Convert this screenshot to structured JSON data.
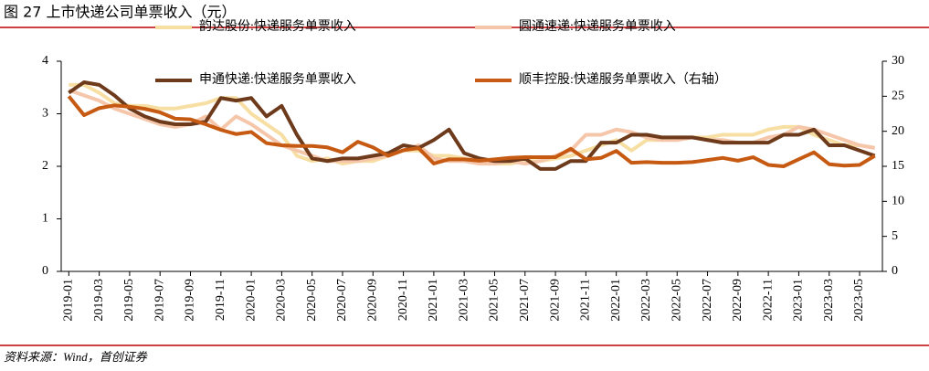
{
  "chart_data": {
    "type": "line",
    "title": "图 27 上市快递公司单票收入（元）",
    "source": "资料来源：Wind，首创证券",
    "categories": [
      "2019-01",
      null,
      "2019-03",
      null,
      "2019-05",
      null,
      "2019-07",
      null,
      "2019-09",
      null,
      "2019-11",
      null,
      "2020-01",
      null,
      "2020-03",
      null,
      "2020-05",
      null,
      "2020-07",
      null,
      "2020-09",
      null,
      "2020-11",
      null,
      "2021-01",
      null,
      "2021-03",
      null,
      "2021-05",
      null,
      "2021-07",
      null,
      "2021-09",
      null,
      "2021-11",
      null,
      "2022-01",
      null,
      "2022-03",
      null,
      "2022-05",
      null,
      "2022-07",
      null,
      "2022-09",
      null,
      "2022-11",
      null,
      "2023-01",
      null,
      "2023-03",
      null,
      "2023-05",
      null
    ],
    "ylim": [
      0,
      4
    ],
    "yticks": [
      0,
      1,
      2,
      3,
      4
    ],
    "y2lim": [
      0,
      30
    ],
    "y2ticks": [
      0,
      5,
      10,
      15,
      20,
      25,
      30
    ],
    "series": [
      {
        "name": "韵达股份:快递服务单票收入",
        "color": "#F7DFA3",
        "values": [
          3.55,
          3.55,
          3.4,
          3.2,
          3.15,
          3.15,
          3.1,
          3.1,
          3.15,
          3.2,
          3.3,
          3.3,
          3.0,
          2.8,
          2.6,
          2.2,
          2.1,
          2.15,
          2.05,
          2.1,
          2.1,
          2.2,
          2.3,
          2.3,
          2.2,
          2.2,
          2.15,
          2.1,
          2.05,
          2.05,
          2.1,
          2.1,
          2.15,
          2.2,
          2.3,
          2.4,
          2.5,
          2.3,
          2.5,
          2.5,
          2.55,
          2.55,
          2.55,
          2.6,
          2.6,
          2.6,
          2.7,
          2.75,
          2.75,
          2.6,
          2.5,
          2.4,
          2.4,
          2.35
        ]
      },
      {
        "name": "圆通速递:快递服务单票收入",
        "color": "#F5C6AA",
        "values": [
          3.45,
          3.35,
          3.25,
          3.1,
          3.0,
          2.9,
          2.8,
          2.75,
          2.8,
          2.95,
          2.7,
          2.95,
          2.8,
          2.6,
          2.4,
          2.3,
          2.2,
          2.1,
          2.1,
          2.1,
          2.15,
          2.2,
          2.3,
          2.4,
          2.15,
          2.1,
          2.1,
          2.05,
          2.05,
          2.1,
          2.05,
          2.1,
          2.2,
          2.3,
          2.6,
          2.6,
          2.7,
          2.65,
          2.55,
          2.5,
          2.5,
          2.55,
          2.5,
          2.5,
          2.45,
          2.45,
          2.55,
          2.6,
          2.75,
          2.7,
          2.6,
          2.5,
          2.4,
          2.35
        ]
      },
      {
        "name": "申通快递:快递服务单票收入",
        "color": "#6E3A1C",
        "values": [
          3.4,
          3.6,
          3.55,
          3.35,
          3.1,
          2.95,
          2.85,
          2.8,
          2.8,
          2.85,
          3.3,
          3.25,
          3.3,
          2.95,
          3.15,
          2.6,
          2.15,
          2.1,
          2.15,
          2.15,
          2.2,
          2.25,
          2.4,
          2.35,
          2.5,
          2.7,
          2.25,
          2.15,
          2.1,
          2.1,
          2.15,
          1.95,
          1.95,
          2.1,
          2.1,
          2.45,
          2.45,
          2.6,
          2.6,
          2.55,
          2.55,
          2.55,
          2.5,
          2.45,
          2.45,
          2.45,
          2.45,
          2.6,
          2.6,
          2.7,
          2.4,
          2.4,
          2.3,
          2.2
        ]
      },
      {
        "name": "顺丰控股:快递服务单票收入（右轴）",
        "color": "#C65A12",
        "axis": "y2",
        "values": [
          25,
          22.3,
          23.3,
          23.7,
          23.5,
          23.2,
          22.7,
          21.8,
          21.7,
          21.0,
          20.2,
          19.6,
          19.9,
          18.3,
          18.0,
          17.9,
          17.9,
          17.7,
          17.0,
          18.5,
          17.7,
          16.5,
          17.3,
          17.6,
          15.4,
          16.0,
          16.0,
          15.8,
          16.0,
          16.2,
          16.3,
          16.3,
          16.3,
          17.5,
          16.0,
          16.2,
          17.2,
          15.5,
          15.6,
          15.5,
          15.5,
          15.6,
          15.9,
          16.2,
          15.8,
          16.3,
          15.2,
          15.0,
          16.0,
          17.0,
          15.3,
          15.1,
          15.2,
          16.5
        ]
      }
    ]
  }
}
